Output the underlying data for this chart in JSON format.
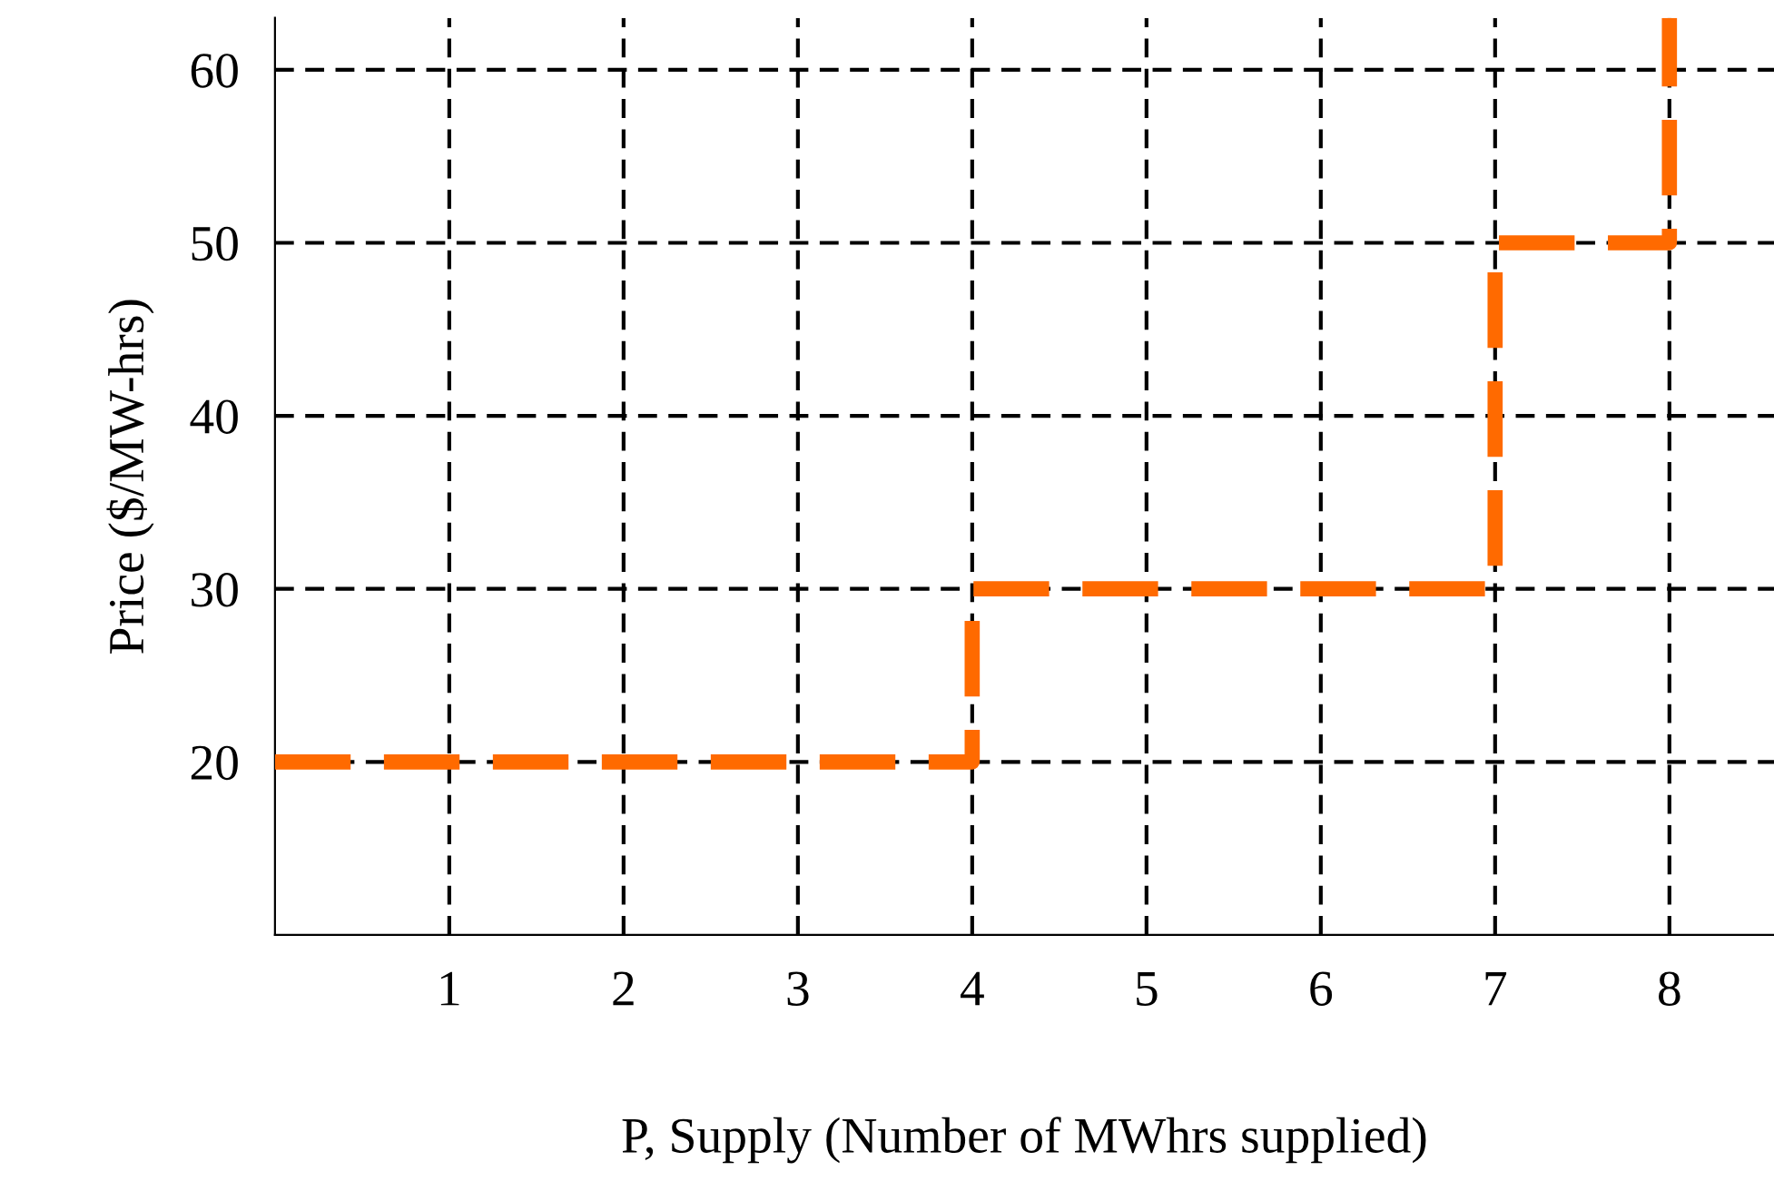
{
  "chart_data": {
    "type": "step",
    "xlabel": "P, Supply (Number of MWhrs supplied)",
    "ylabel": "Price ($/MW-hrs)",
    "x": [
      0,
      4,
      7,
      8
    ],
    "series": [
      {
        "color": "#ff6a00",
        "values": [
          20,
          30,
          50,
          63
        ]
      }
    ],
    "line_style": "dashed",
    "grid": true,
    "xlim": [
      0,
      8.6
    ],
    "ylim": [
      10,
      63
    ],
    "xticks": [
      1,
      2,
      3,
      4,
      5,
      6,
      7,
      8
    ],
    "yticks": [
      20,
      30,
      40,
      50,
      60
    ]
  }
}
